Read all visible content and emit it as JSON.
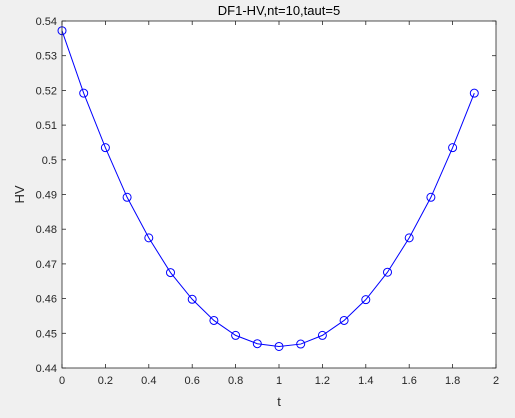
{
  "chart_data": {
    "type": "line",
    "title": "DF1-HV,nt=10,taut=5",
    "xlabel": "t",
    "ylabel": "HV",
    "xlim": [
      0,
      2
    ],
    "ylim": [
      0.44,
      0.54
    ],
    "grid": false,
    "x_ticks": [
      0,
      0.2,
      0.4,
      0.6,
      0.8,
      1,
      1.2,
      1.4,
      1.6,
      1.8,
      2
    ],
    "x_tick_labels": [
      "0",
      "0.2",
      "0.4",
      "0.6",
      "0.8",
      "1",
      "1.2",
      "1.4",
      "1.6",
      "1.8",
      "2"
    ],
    "y_ticks": [
      0.44,
      0.45,
      0.46,
      0.47,
      0.48,
      0.49,
      0.5,
      0.51,
      0.52,
      0.53,
      0.54
    ],
    "y_tick_labels": [
      "0.44",
      "0.45",
      "0.46",
      "0.47",
      "0.48",
      "0.49",
      "0.5",
      "0.51",
      "0.52",
      "0.53",
      "0.54"
    ],
    "series": [
      {
        "color": "#0000ff",
        "marker": "circle",
        "x": [
          0,
          0.1,
          0.2,
          0.3,
          0.4,
          0.5,
          0.6,
          0.7,
          0.8,
          0.9,
          1.0,
          1.1,
          1.2,
          1.3,
          1.4,
          1.5,
          1.6,
          1.7,
          1.8,
          1.9
        ],
        "y": [
          0.5372,
          0.5192,
          0.5035,
          0.4892,
          0.4775,
          0.4675,
          0.4598,
          0.4537,
          0.4494,
          0.447,
          0.4462,
          0.4469,
          0.4494,
          0.4537,
          0.4597,
          0.4676,
          0.4775,
          0.4892,
          0.5035,
          0.5192
        ]
      }
    ]
  }
}
